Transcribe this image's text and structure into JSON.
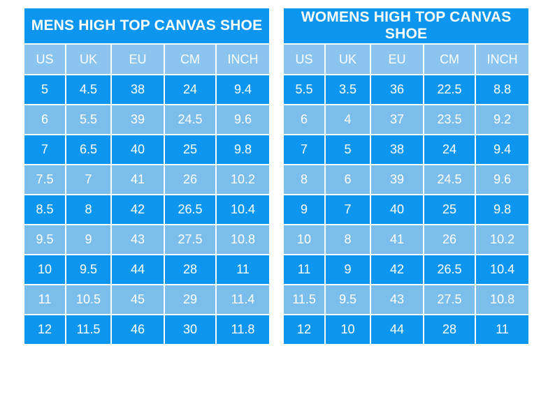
{
  "colors": {
    "background": "#ffffff",
    "dark_blue": "#0d96f0",
    "light_blue": "#7cbeeb",
    "header_blue": "#8ac4ef",
    "text": "#ffffff"
  },
  "chart_data": [
    {
      "type": "table",
      "title": "MENS HIGH TOP CANVAS SHOE",
      "columns": [
        "US",
        "UK",
        "EU",
        "CM",
        "INCH"
      ],
      "rows": [
        [
          "5",
          "4.5",
          "38",
          "24",
          "9.4"
        ],
        [
          "6",
          "5.5",
          "39",
          "24.5",
          "9.6"
        ],
        [
          "7",
          "6.5",
          "40",
          "25",
          "9.8"
        ],
        [
          "7.5",
          "7",
          "41",
          "26",
          "10.2"
        ],
        [
          "8.5",
          "8",
          "42",
          "26.5",
          "10.4"
        ],
        [
          "9.5",
          "9",
          "43",
          "27.5",
          "10.8"
        ],
        [
          "10",
          "9.5",
          "44",
          "28",
          "11"
        ],
        [
          "11",
          "10.5",
          "45",
          "29",
          "11.4"
        ],
        [
          "12",
          "11.5",
          "46",
          "30",
          "11.8"
        ]
      ]
    },
    {
      "type": "table",
      "title": "WOMENS HIGH TOP CANVAS SHOE",
      "columns": [
        "US",
        "UK",
        "EU",
        "CM",
        "INCH"
      ],
      "rows": [
        [
          "5.5",
          "3.5",
          "36",
          "22.5",
          "8.8"
        ],
        [
          "6",
          "4",
          "37",
          "23.5",
          "9.2"
        ],
        [
          "7",
          "5",
          "38",
          "24",
          "9.4"
        ],
        [
          "8",
          "6",
          "39",
          "24.5",
          "9.6"
        ],
        [
          "9",
          "7",
          "40",
          "25",
          "9.8"
        ],
        [
          "10",
          "8",
          "41",
          "26",
          "10.2"
        ],
        [
          "11",
          "9",
          "42",
          "26.5",
          "10.4"
        ],
        [
          "11.5",
          "9.5",
          "43",
          "27.5",
          "10.8"
        ],
        [
          "12",
          "10",
          "44",
          "28",
          "11"
        ]
      ]
    }
  ]
}
